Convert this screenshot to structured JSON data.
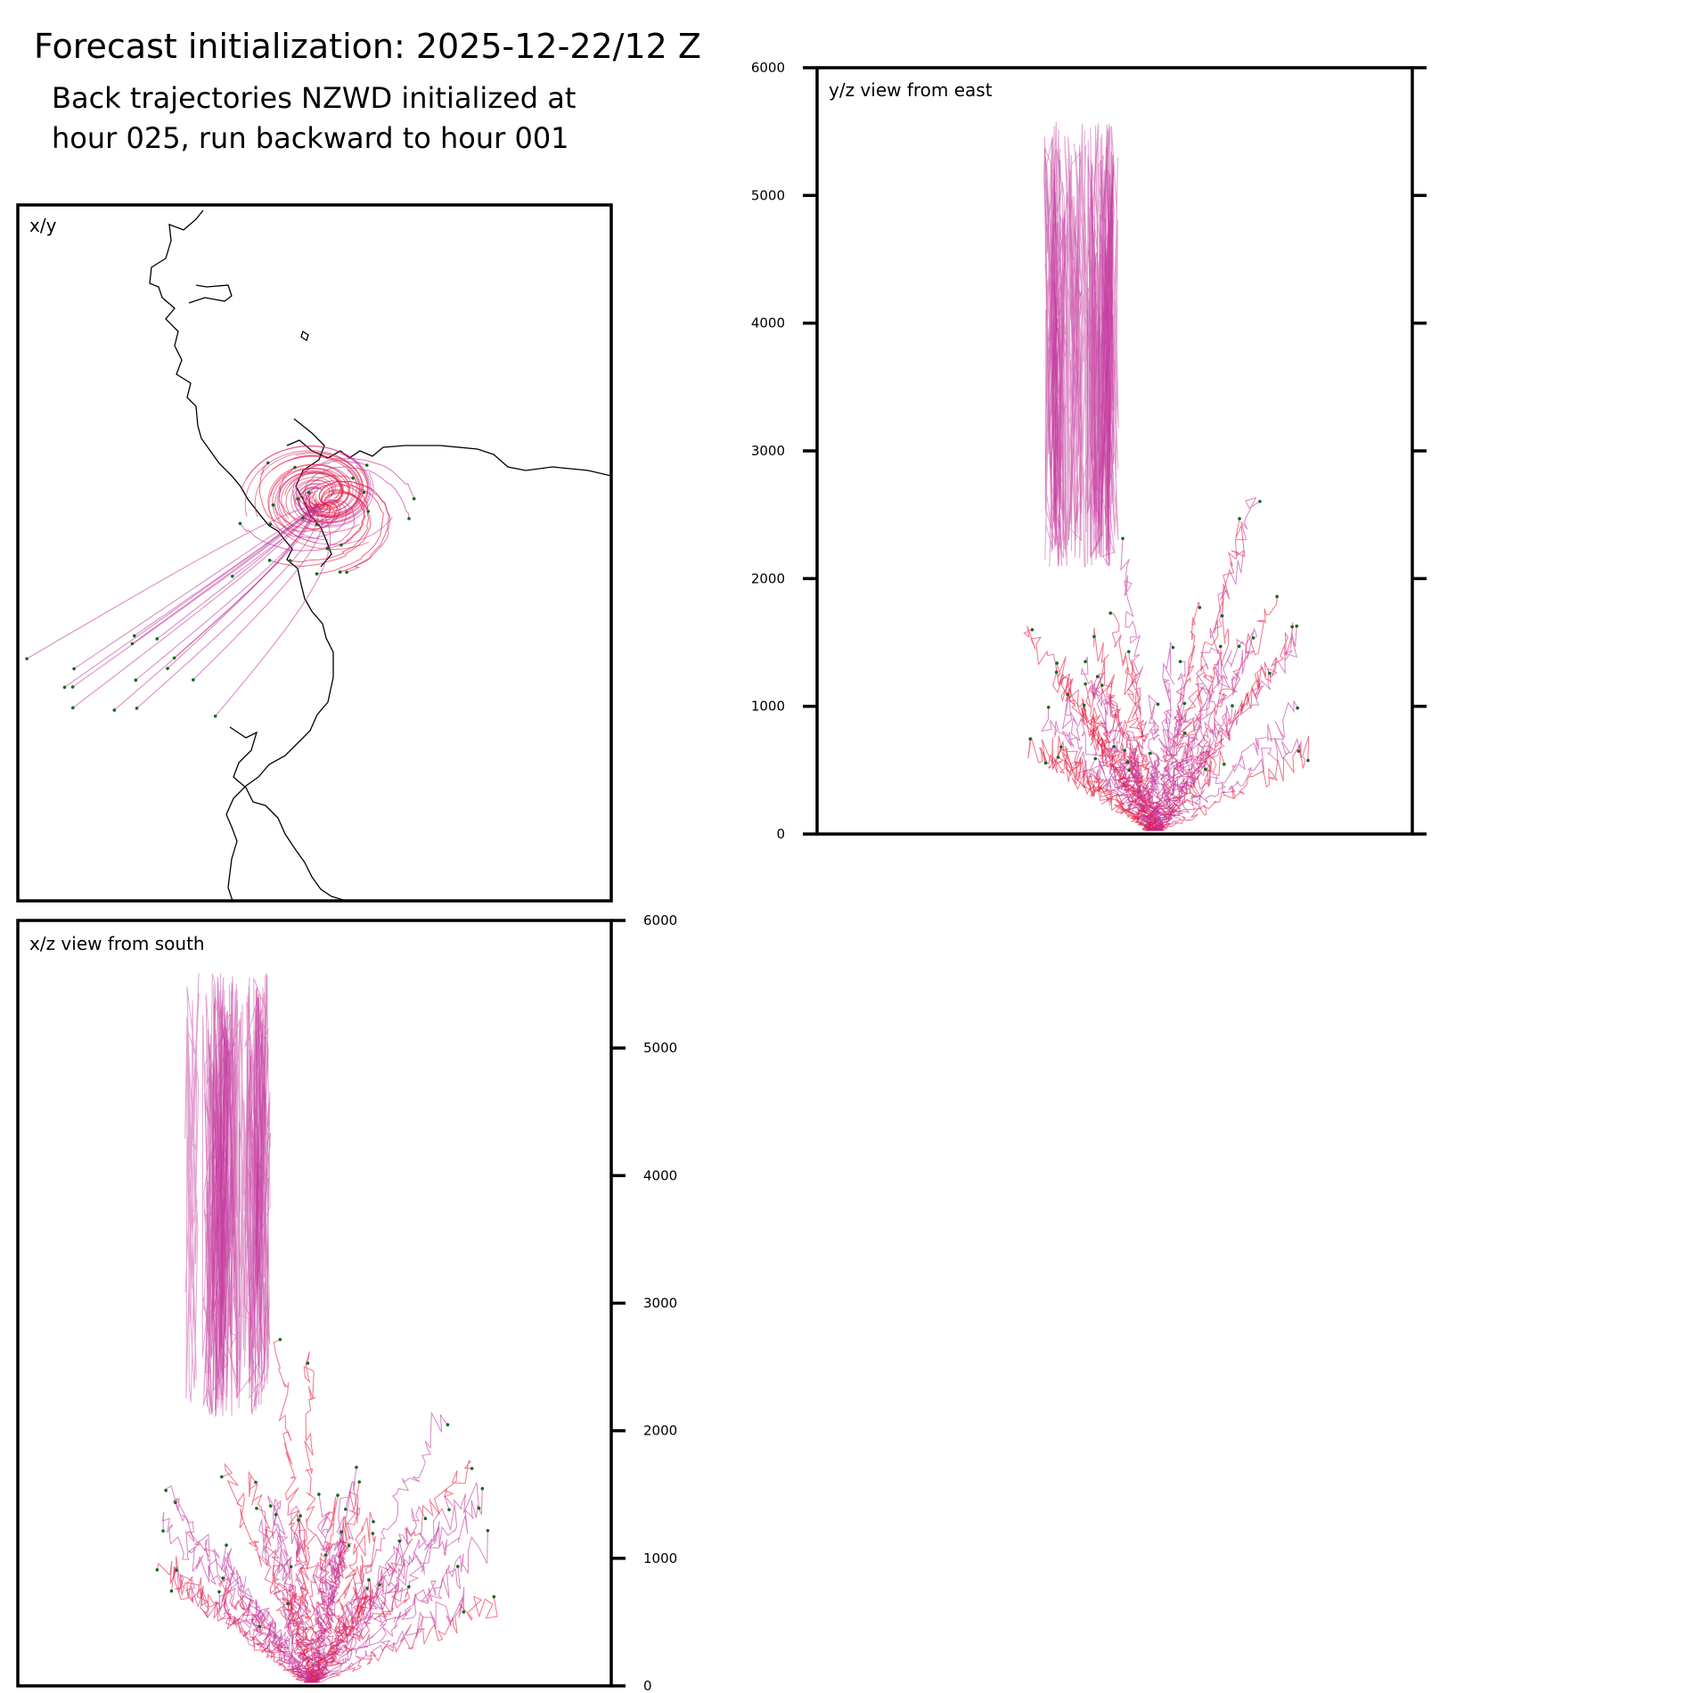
{
  "title": "Forecast initialization: 2025-12-22/12 Z",
  "subtitle": [
    "Back trajectories NZWD initialized at",
    "hour 025, run backward to hour 001"
  ],
  "colors": {
    "traj_a": "#c0309a",
    "traj_b": "#e8173f",
    "marker": "#0f6b1e",
    "coast": "#000000"
  },
  "chart_data": [
    {
      "type": "line",
      "panel": "x/y",
      "title": "x/y",
      "grid": false,
      "description_series": "back trajectories in horizontal plane converging to NZWD"
    },
    {
      "type": "line",
      "panel": "y/z",
      "title": "y/z view from east",
      "ylabel": "",
      "ylim": [
        0,
        6000
      ],
      "yticks": [
        "0",
        "1000",
        "2000",
        "3000",
        "4000",
        "5000",
        "6000"
      ],
      "ytick_values": [
        0,
        1000,
        2000,
        3000,
        4000,
        5000,
        6000
      ],
      "tick_side": "both",
      "label_side": "left",
      "grid": false
    },
    {
      "type": "line",
      "panel": "x/z",
      "title": "x/z view from south",
      "ylim": [
        0,
        6000
      ],
      "yticks": [
        "0",
        "1000",
        "2000",
        "3000",
        "4000",
        "5000",
        "6000"
      ],
      "ytick_values": [
        0,
        1000,
        2000,
        3000,
        4000,
        5000,
        6000
      ],
      "tick_side": "right",
      "label_side": "right",
      "grid": false
    }
  ]
}
